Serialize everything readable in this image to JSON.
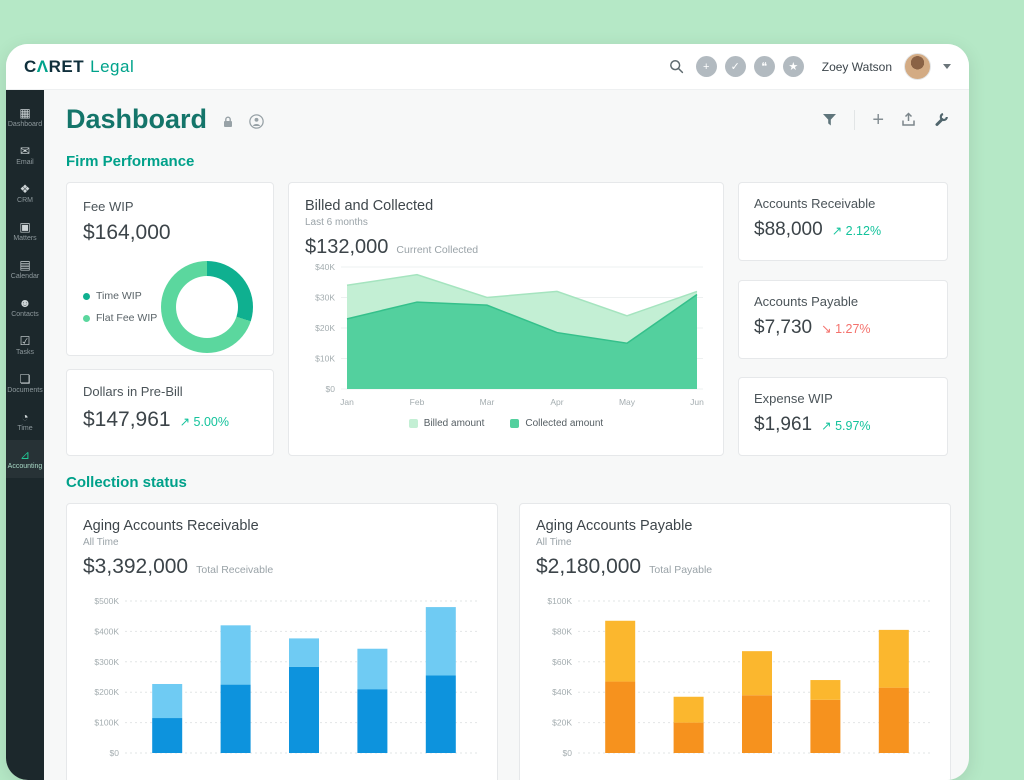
{
  "brand": {
    "c": "C",
    "caret": "Λ",
    "ret": "RET",
    "suffix": "Legal"
  },
  "header": {
    "user": "Zoey Watson",
    "actions": [
      {
        "name": "add-button",
        "glyph": "+"
      },
      {
        "name": "check-button",
        "glyph": "✓"
      },
      {
        "name": "chat-button",
        "glyph": "❝"
      },
      {
        "name": "star-button",
        "glyph": "★"
      }
    ]
  },
  "sidebar": {
    "items": [
      {
        "label": "Dashboard",
        "icon": "▦",
        "active": false
      },
      {
        "label": "Email",
        "icon": "✉",
        "active": false
      },
      {
        "label": "CRM",
        "icon": "❖",
        "active": false
      },
      {
        "label": "Matters",
        "icon": "▣",
        "active": false
      },
      {
        "label": "Calendar",
        "icon": "▤",
        "active": false
      },
      {
        "label": "Contacts",
        "icon": "☻",
        "active": false
      },
      {
        "label": "Tasks",
        "icon": "☑",
        "active": false
      },
      {
        "label": "Documents",
        "icon": "❏",
        "active": false
      },
      {
        "label": "Time",
        "icon": "◔",
        "active": false
      },
      {
        "label": "Accounting",
        "icon": "⊿",
        "active": true
      }
    ]
  },
  "page": {
    "title": "Dashboard"
  },
  "sections": {
    "performance": "Firm Performance",
    "collection": "Collection status"
  },
  "fee_wip": {
    "title": "Fee WIP",
    "value": "$164,000",
    "donut": {
      "segments": [
        {
          "label": "Time WIP",
          "pct": 30,
          "color": "#0fb090"
        },
        {
          "label": "Flat Fee WIP",
          "pct": 70,
          "color": "#5bd79e"
        }
      ]
    }
  },
  "pre_bill": {
    "title": "Dollars in Pre-Bill",
    "value": "$147,961",
    "trend": {
      "glyph": "↗",
      "pct": "5.00%",
      "dir": "up"
    }
  },
  "billed_collected": {
    "title": "Billed and Collected",
    "subtitle": "Last 6 months",
    "value": "$132,000",
    "value_label": "Current Collected",
    "chart": {
      "type": "area",
      "x": [
        "Jan",
        "Feb",
        "Mar",
        "Apr",
        "May",
        "Jun"
      ],
      "ylim": [
        0,
        40000
      ],
      "yticks": [
        "$40K",
        "$30K",
        "$20K",
        "$10K",
        "$0"
      ],
      "series": [
        {
          "name": "Billed amount",
          "color": "#c3efd4",
          "stroke": "#a5e4bf",
          "values": [
            34000,
            37500,
            30000,
            32000,
            24000,
            32000
          ]
        },
        {
          "name": "Collected amount",
          "color": "#53d09e",
          "stroke": "#35c08b",
          "values": [
            23000,
            28500,
            27500,
            18500,
            15000,
            31000
          ]
        }
      ]
    }
  },
  "stats": [
    {
      "title": "Accounts Receivable",
      "value": "$88,000",
      "trend": {
        "glyph": "↗",
        "pct": "2.12%",
        "dir": "up"
      }
    },
    {
      "title": "Accounts Payable",
      "value": "$7,730",
      "trend": {
        "glyph": "↘",
        "pct": "1.27%",
        "dir": "down"
      }
    },
    {
      "title": "Expense WIP",
      "value": "$1,961",
      "trend": {
        "glyph": "↗",
        "pct": "5.97%",
        "dir": "up"
      }
    }
  ],
  "aging_receivable": {
    "title": "Aging Accounts Receivable",
    "period": "All Time",
    "value": "$3,392,000",
    "value_label": "Total Receivable",
    "chart": {
      "type": "stacked-bar",
      "ylim": [
        0,
        500000
      ],
      "yticks": [
        "$500K",
        "$400K",
        "$300K",
        "$200K",
        "$100K",
        "$0"
      ],
      "colors": {
        "bottom": "#0d93dd",
        "top": "#6fcbf3"
      },
      "bars": [
        {
          "bottom": 115000,
          "top": 112000
        },
        {
          "bottom": 225000,
          "top": 195000
        },
        {
          "bottom": 283000,
          "top": 94000
        },
        {
          "bottom": 210000,
          "top": 133000
        },
        {
          "bottom": 255000,
          "top": 225000
        }
      ]
    }
  },
  "aging_payable": {
    "title": "Aging Accounts Payable",
    "period": "All Time",
    "value": "$2,180,000",
    "value_label": "Total Payable",
    "chart": {
      "type": "stacked-bar",
      "ylim": [
        0,
        100000
      ],
      "yticks": [
        "$100K",
        "$80K",
        "$60K",
        "$40K",
        "$20K",
        "$0"
      ],
      "colors": {
        "bottom": "#f6921e",
        "top": "#fbb72e"
      },
      "bars": [
        {
          "bottom": 47000,
          "top": 40000
        },
        {
          "bottom": 20000,
          "top": 17000
        },
        {
          "bottom": 38000,
          "top": 29000
        },
        {
          "bottom": 35000,
          "top": 13000
        },
        {
          "bottom": 43000,
          "top": 38000
        }
      ]
    }
  },
  "colors": {
    "positive": "#14c39c",
    "negative": "#f4726d",
    "accent": "#00a18a"
  }
}
